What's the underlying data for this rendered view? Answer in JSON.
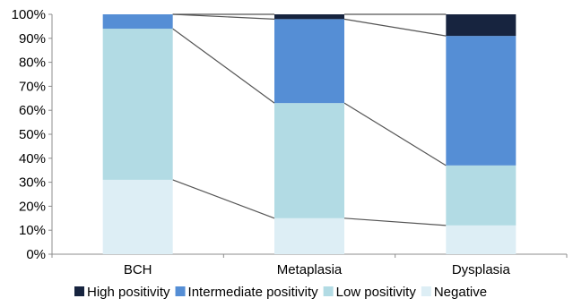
{
  "chart_data": {
    "type": "bar",
    "stacked": true,
    "categories": [
      "BCH",
      "Metaplasia",
      "Dysplasia"
    ],
    "series": [
      {
        "name": "Negative",
        "values": [
          31,
          15,
          12
        ],
        "color": "#ddeef5"
      },
      {
        "name": "Low positivity",
        "values": [
          63,
          48,
          25
        ],
        "color": "#b2dbe4"
      },
      {
        "name": "Intermediate positivity",
        "values": [
          6,
          35,
          54
        ],
        "color": "#558ed5"
      },
      {
        "name": "High positivity",
        "values": [
          0,
          2,
          9
        ],
        "color": "#17243f"
      }
    ],
    "legend_order": [
      "High positivity",
      "Intermediate positivity",
      "Low positivity",
      "Negative"
    ],
    "yticks": [
      "0%",
      "10%",
      "20%",
      "30%",
      "40%",
      "50%",
      "60%",
      "70%",
      "80%",
      "90%",
      "100%"
    ],
    "ylim": [
      0,
      100
    ],
    "title": "",
    "xlabel": "",
    "ylabel": "",
    "grid": false,
    "legend_position": "bottom",
    "connector_lines": true
  }
}
